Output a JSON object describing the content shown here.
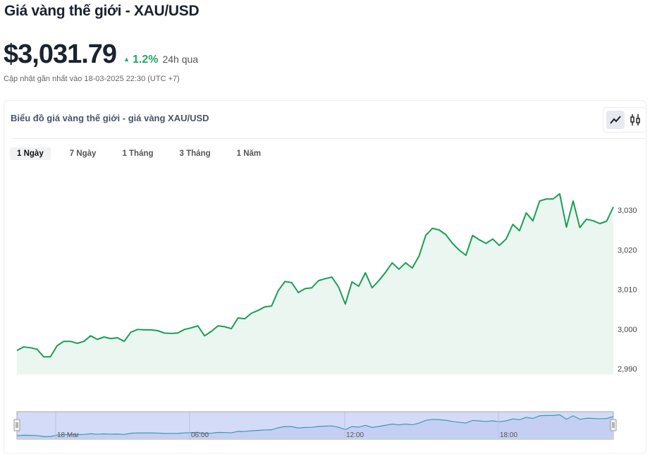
{
  "header": {
    "title": "Giá vàng thế giới - XAU/USD",
    "price": "$3,031.79",
    "change": "1.2%",
    "change_direction": "up",
    "period": "24h qua",
    "updated": "Cập nhật gần nhất vào 18-03-2025 22:30 (UTC +7)"
  },
  "card": {
    "title": "Biểu đồ giá vàng thế giới - giá vàng XAU/USD",
    "tools": [
      {
        "icon": "line-chart-icon",
        "active": true
      },
      {
        "icon": "candlestick-icon",
        "active": false
      }
    ]
  },
  "tabs": [
    {
      "label": "1 Ngày",
      "active": true
    },
    {
      "label": "7 Ngày"
    },
    {
      "label": "1 Tháng"
    },
    {
      "label": "3 Tháng"
    },
    {
      "label": "1 Năm"
    }
  ],
  "colors": {
    "line": "#1a9e55",
    "area": "#eaf6ef",
    "up": "#1fa865",
    "navigator_bg": "#d3dbf8",
    "navigator_line": "#3a9ca8"
  },
  "chart_data": {
    "type": "area",
    "x_range": [
      "2025-03-17 22:30",
      "2025-03-18 22:30"
    ],
    "ylim": [
      2988,
      3036
    ],
    "yticks": [
      2990,
      3000,
      3010,
      3020,
      3030
    ],
    "ytick_labels": [
      "2,990",
      "3,000",
      "3,010",
      "3,020",
      "3,030"
    ],
    "grid": false,
    "navigator_labels": [
      "18 Mar",
      "06:00",
      "12:00",
      "18:00"
    ],
    "values": [
      2994.6,
      2995.5,
      2995.3,
      2994.9,
      2993.0,
      2993.0,
      2995.8,
      2996.9,
      2996.9,
      2996.4,
      2996.9,
      2998.3,
      2997.4,
      2998.0,
      2997.6,
      2997.8,
      2996.9,
      2999.2,
      2999.9,
      2999.8,
      2999.8,
      2999.6,
      2999.0,
      2998.9,
      2999.0,
      2999.9,
      3000.3,
      3000.8,
      2998.3,
      2999.4,
      3000.8,
      3000.6,
      3000.1,
      3002.8,
      3002.6,
      3004.0,
      3004.7,
      3005.6,
      3005.8,
      3009.7,
      3012.0,
      3011.7,
      3009.2,
      3010.2,
      3010.4,
      3012.2,
      3012.7,
      3013.1,
      3010.6,
      3006.3,
      3011.9,
      3010.8,
      3014.2,
      3010.4,
      3012.2,
      3014.3,
      3016.7,
      3015.1,
      3016.7,
      3015.4,
      3018.4,
      3023.6,
      3025.4,
      3025.0,
      3023.8,
      3021.6,
      3019.9,
      3018.6,
      3023.6,
      3022.5,
      3021.6,
      3022.7,
      3021.1,
      3022.7,
      3026.4,
      3024.8,
      3029.3,
      3027.3,
      3032.3,
      3032.8,
      3032.8,
      3034.1,
      3025.7,
      3032.3,
      3025.6,
      3027.7,
      3027.3,
      3026.6,
      3027.2,
      3030.8
    ]
  }
}
